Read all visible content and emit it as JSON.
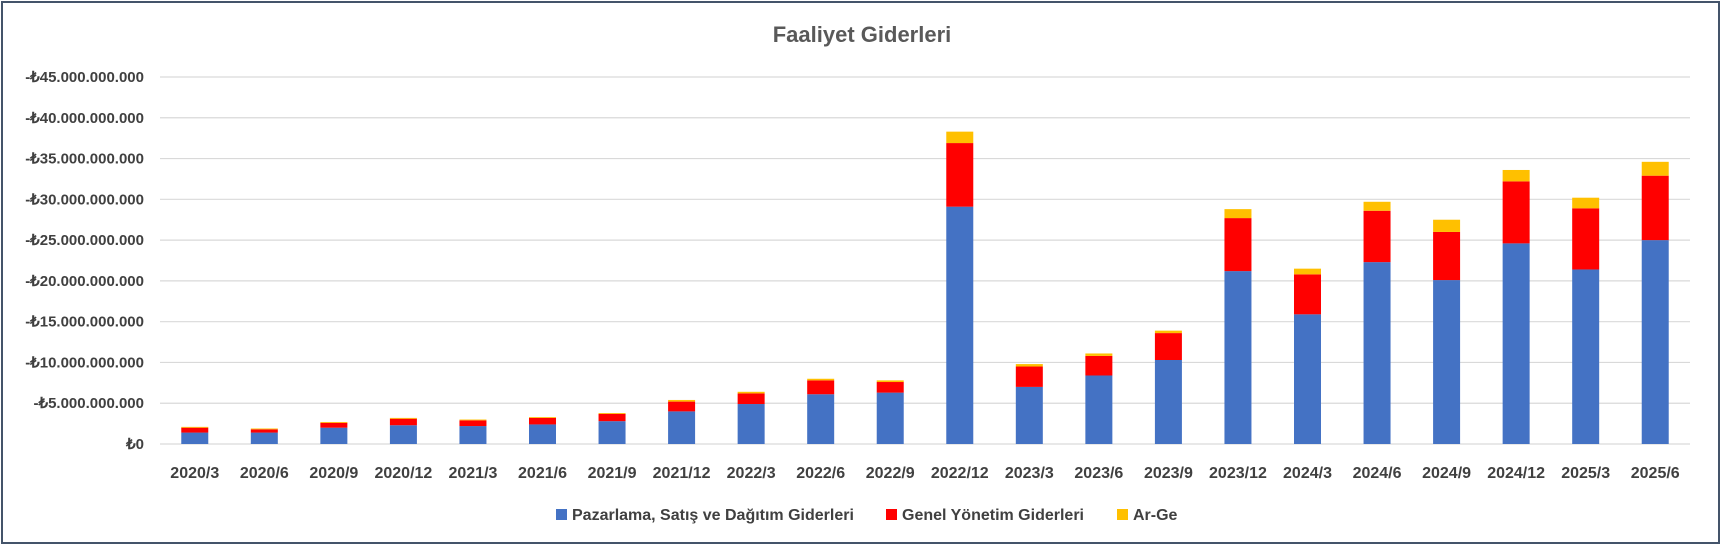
{
  "chart_data": {
    "type": "bar",
    "stacked": true,
    "title": "Faaliyet Giderleri",
    "xlabel": "",
    "ylabel": "",
    "ylim": [
      0,
      -45000000000
    ],
    "y_ticks": [
      0,
      -5000000000,
      -10000000000,
      -15000000000,
      -20000000000,
      -25000000000,
      -30000000000,
      -35000000000,
      -40000000000,
      -45000000000
    ],
    "y_tick_labels": [
      "₺0",
      "-₺5.000.000.000",
      "-₺10.000.000.000",
      "-₺15.000.000.000",
      "-₺20.000.000.000",
      "-₺25.000.000.000",
      "-₺30.000.000.000",
      "-₺35.000.000.000",
      "-₺40.000.000.000",
      "-₺45.000.000.000"
    ],
    "grid": true,
    "legend_position": "bottom",
    "categories": [
      "2020/3",
      "2020/6",
      "2020/9",
      "2020/12",
      "2021/3",
      "2021/6",
      "2021/9",
      "2021/12",
      "2022/3",
      "2022/6",
      "2022/9",
      "2022/12",
      "2023/3",
      "2023/6",
      "2023/9",
      "2023/12",
      "2024/3",
      "2024/6",
      "2024/9",
      "2024/12",
      "2025/3",
      "2025/6"
    ],
    "series": [
      {
        "name": "Pazarlama, Satış ve Dağıtım Giderleri",
        "color": "#4472c4",
        "values": [
          -1400000000,
          -1400000000,
          -2000000000,
          -2300000000,
          -2200000000,
          -2400000000,
          -2800000000,
          -4000000000,
          -4900000000,
          -6100000000,
          -6300000000,
          -29100000000,
          -7000000000,
          -8400000000,
          -10300000000,
          -21200000000,
          -15900000000,
          -22300000000,
          -20100000000,
          -24600000000,
          -21400000000,
          -25000000000
        ]
      },
      {
        "name": "Genel Yönetim Giderleri",
        "color": "#ff0000",
        "values": [
          -600000000,
          -400000000,
          -600000000,
          -800000000,
          -700000000,
          -800000000,
          -900000000,
          -1200000000,
          -1300000000,
          -1700000000,
          -1300000000,
          -7800000000,
          -2500000000,
          -2400000000,
          -3300000000,
          -6500000000,
          -4900000000,
          -6300000000,
          -5900000000,
          -7600000000,
          -7500000000,
          -7900000000
        ]
      },
      {
        "name": "Ar-Ge",
        "color": "#ffc000",
        "values": [
          -100000000,
          -100000000,
          -100000000,
          -100000000,
          -100000000,
          -100000000,
          -100000000,
          -200000000,
          -200000000,
          -200000000,
          -200000000,
          -1400000000,
          -300000000,
          -300000000,
          -300000000,
          -1100000000,
          -700000000,
          -1100000000,
          -1500000000,
          -1400000000,
          -1300000000,
          -1700000000
        ]
      }
    ]
  }
}
